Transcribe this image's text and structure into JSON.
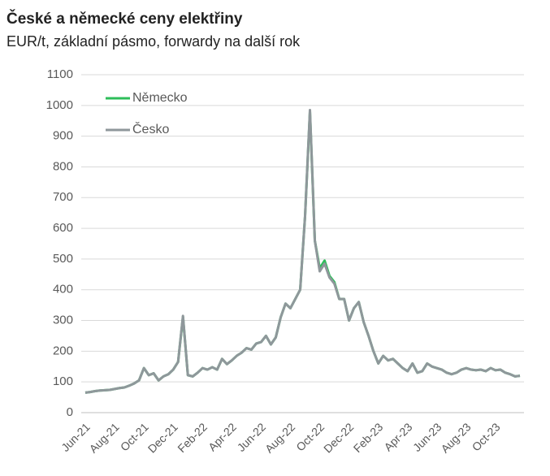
{
  "chart_data": {
    "type": "line",
    "title": "České a německé ceny elektřiny",
    "subtitle": "EUR/t, základní pásmo, forwardy na další rok",
    "categories": [
      "Jun-21",
      null,
      null,
      null,
      null,
      null,
      "Aug-21",
      null,
      null,
      null,
      null,
      null,
      "Oct-21",
      null,
      null,
      null,
      null,
      null,
      "Dec-21",
      null,
      null,
      null,
      null,
      null,
      "Feb-22",
      null,
      null,
      null,
      null,
      null,
      "Apr-22",
      null,
      null,
      null,
      null,
      null,
      "Jun-22",
      null,
      null,
      null,
      null,
      null,
      "Aug-22",
      null,
      null,
      null,
      null,
      null,
      "Oct-22",
      null,
      null,
      null,
      null,
      null,
      "Dec-22",
      null,
      null,
      null,
      null,
      null,
      "Feb-23",
      null,
      null,
      null,
      null,
      null,
      "Apr-23",
      null,
      null,
      null,
      null,
      null,
      "Jun-23",
      null,
      null,
      null,
      null,
      null,
      "Aug-23",
      null,
      null,
      null,
      null,
      null,
      "Oct-23",
      null,
      null,
      null,
      null,
      null
    ],
    "series": [
      {
        "name": "Německo",
        "color": "#2dbe5a",
        "values": [
          65,
          67,
          70,
          72,
          73,
          74,
          77,
          80,
          82,
          88,
          95,
          105,
          145,
          122,
          128,
          105,
          118,
          125,
          140,
          165,
          312,
          122,
          118,
          130,
          145,
          140,
          148,
          140,
          175,
          158,
          170,
          185,
          195,
          210,
          205,
          225,
          230,
          250,
          222,
          245,
          310,
          355,
          340,
          370,
          400,
          640,
          980,
          560,
          470,
          495,
          445,
          425,
          370,
          370,
          300,
          340,
          360,
          295,
          250,
          200,
          160,
          185,
          170,
          175,
          160,
          145,
          135,
          160,
          130,
          135,
          160,
          150,
          145,
          140,
          130,
          125,
          130,
          140,
          145,
          140,
          138,
          140,
          135,
          145,
          138,
          140,
          130,
          125,
          118,
          120
        ]
      },
      {
        "name": "Česko",
        "color": "#8f979b",
        "values": [
          65,
          67,
          70,
          72,
          73,
          74,
          77,
          80,
          82,
          88,
          95,
          105,
          145,
          122,
          128,
          105,
          118,
          125,
          140,
          165,
          315,
          122,
          118,
          130,
          145,
          140,
          148,
          140,
          175,
          158,
          170,
          185,
          195,
          210,
          205,
          225,
          230,
          250,
          222,
          245,
          310,
          355,
          340,
          370,
          400,
          640,
          985,
          560,
          460,
          485,
          440,
          420,
          370,
          370,
          300,
          340,
          360,
          295,
          250,
          200,
          160,
          185,
          170,
          175,
          160,
          145,
          135,
          160,
          130,
          135,
          160,
          150,
          145,
          140,
          130,
          125,
          130,
          140,
          145,
          140,
          138,
          140,
          135,
          145,
          138,
          140,
          130,
          125,
          118,
          120
        ]
      }
    ],
    "ylim": [
      0,
      1100
    ],
    "yticks": [
      0,
      100,
      200,
      300,
      400,
      500,
      600,
      700,
      800,
      900,
      1000,
      1100
    ],
    "grid": true,
    "legend": "top-left"
  }
}
